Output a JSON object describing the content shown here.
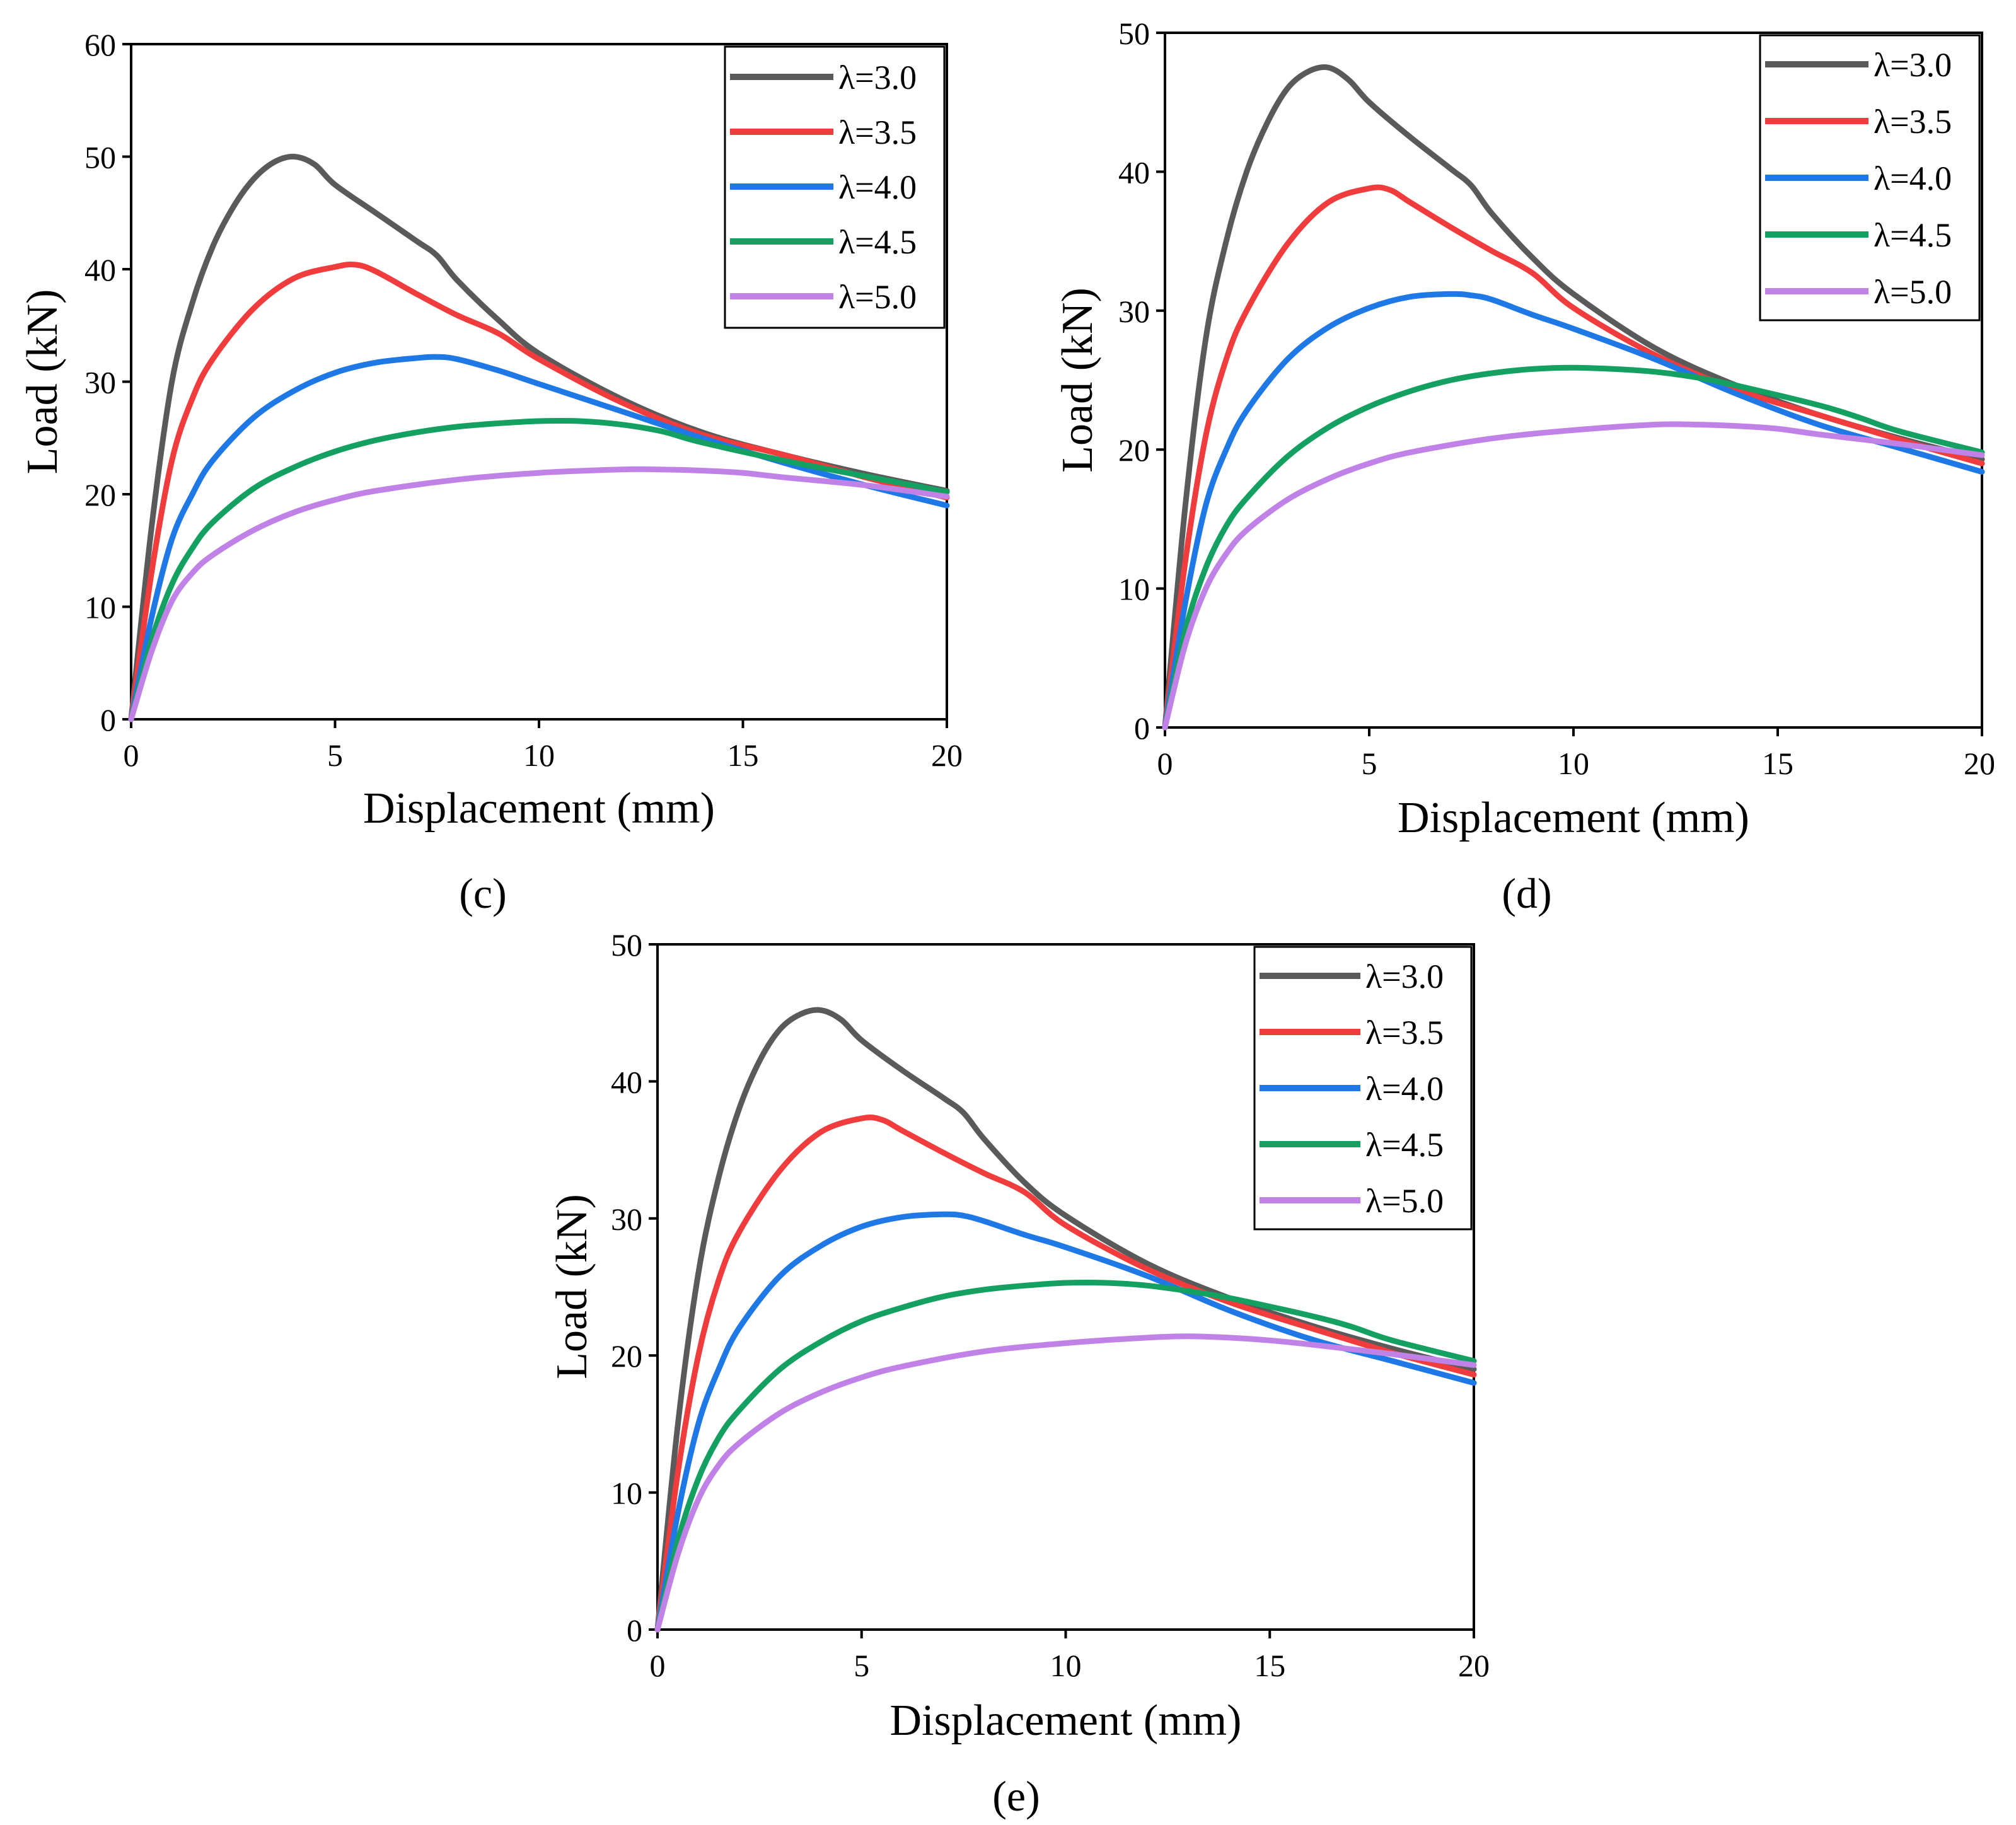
{
  "figure": {
    "series_names": [
      "λ=3.0",
      "λ=3.5",
      "λ=4.0",
      "λ=4.5",
      "λ=5.0"
    ],
    "series_colors": [
      "#5a5a5a",
      "#f03c3c",
      "#1e78e6",
      "#14a060",
      "#c082e6"
    ]
  },
  "chart_data": [
    {
      "panel": "c",
      "caption": "(c)",
      "type": "line",
      "xlabel": "Displacement (mm)",
      "ylabel": "Load (kN)",
      "xlim": [
        0,
        20
      ],
      "ylim": [
        0,
        60
      ],
      "xticks": [
        0,
        5,
        10,
        15,
        20
      ],
      "yticks": [
        0,
        10,
        20,
        30,
        40,
        50,
        60
      ],
      "legend_position": "top-right",
      "series": [
        {
          "name": "λ=3.0",
          "color": "#5a5a5a",
          "x": [
            0,
            0.5,
            1.0,
            1.5,
            2.0,
            2.5,
            3.0,
            3.5,
            4.0,
            4.5,
            5.0,
            6.0,
            7.0,
            7.5,
            8.0,
            9.0,
            10.0,
            12.0,
            14.0,
            16.0,
            18.0,
            20.0
          ],
          "y": [
            0,
            17,
            30,
            37,
            42,
            45.5,
            48,
            49.5,
            50.0,
            49.3,
            47.5,
            45,
            42.5,
            41.2,
            39,
            35.5,
            32.5,
            28.5,
            25.5,
            23.5,
            21.8,
            20.3
          ]
        },
        {
          "name": "λ=3.5",
          "color": "#f03c3c",
          "x": [
            0,
            0.5,
            1.0,
            1.5,
            2.0,
            3.0,
            4.0,
            5.0,
            5.5,
            6.0,
            7.0,
            8.0,
            9.0,
            10.0,
            12.0,
            14.0,
            16.0,
            18.0,
            20.0
          ],
          "y": [
            0,
            13,
            23,
            28.5,
            32,
            36.5,
            39.2,
            40.2,
            40.4,
            39.8,
            37.8,
            35.9,
            34.3,
            32,
            28.2,
            25.3,
            23.5,
            21.5,
            19.7
          ]
        },
        {
          "name": "λ=4.0",
          "color": "#1e78e6",
          "x": [
            0,
            0.5,
            1.0,
            1.5,
            2.0,
            3.0,
            4.0,
            5.0,
            6.0,
            7.0,
            7.5,
            8.0,
            9.0,
            10.0,
            12.0,
            14.0,
            16.0,
            18.0,
            20.0
          ],
          "y": [
            0,
            9,
            16,
            20,
            23,
            26.8,
            29.2,
            30.8,
            31.7,
            32.1,
            32.2,
            32.0,
            31.0,
            29.8,
            27.4,
            25,
            22.8,
            20.8,
            19.0
          ]
        },
        {
          "name": "λ=4.5",
          "color": "#14a060",
          "x": [
            0,
            0.5,
            1.0,
            1.5,
            2.0,
            3.0,
            4.0,
            5.0,
            6.0,
            7.0,
            8.0,
            9.0,
            10.0,
            11.0,
            12.0,
            13.0,
            14.0,
            16.0,
            18.0,
            20.0
          ],
          "y": [
            0,
            7,
            12,
            15.2,
            17.5,
            20.5,
            22.4,
            23.8,
            24.8,
            25.5,
            26.0,
            26.3,
            26.5,
            26.5,
            26.2,
            25.6,
            24.6,
            23.0,
            21.6,
            20.2
          ]
        },
        {
          "name": "λ=5.0",
          "color": "#c082e6",
          "x": [
            0,
            0.5,
            1.0,
            1.5,
            2.0,
            3.0,
            4.0,
            5.0,
            6.0,
            8.0,
            10.0,
            12.0,
            13.0,
            14.0,
            15.0,
            16.0,
            18.0,
            20.0
          ],
          "y": [
            0,
            6,
            10.5,
            13,
            14.6,
            16.8,
            18.4,
            19.5,
            20.3,
            21.3,
            21.9,
            22.2,
            22.2,
            22.1,
            21.9,
            21.5,
            20.8,
            19.8
          ]
        }
      ]
    },
    {
      "panel": "d",
      "caption": "(d)",
      "type": "line",
      "xlabel": "Displacement (mm)",
      "ylabel": "Load (kN)",
      "xlim": [
        0,
        20
      ],
      "ylim": [
        0,
        50
      ],
      "xticks": [
        0,
        5,
        10,
        15,
        20
      ],
      "yticks": [
        0,
        10,
        20,
        30,
        40,
        50
      ],
      "legend_position": "top-right",
      "series": [
        {
          "name": "λ=3.0",
          "color": "#5a5a5a",
          "x": [
            0,
            0.5,
            1.0,
            1.5,
            2.0,
            2.5,
            3.0,
            3.5,
            4.0,
            4.5,
            5.0,
            6.0,
            7.0,
            7.5,
            8.0,
            9.0,
            10.0,
            12.0,
            14.0,
            16.0,
            18.0,
            20.0
          ],
          "y": [
            0,
            16,
            28,
            35,
            40,
            43.5,
            46,
            47.2,
            47.5,
            46.6,
            45,
            42.5,
            40.2,
            39.0,
            37,
            33.8,
            31.2,
            27.3,
            24.6,
            22.5,
            20.8,
            19.3
          ]
        },
        {
          "name": "λ=3.5",
          "color": "#f03c3c",
          "x": [
            0,
            0.5,
            1.0,
            1.5,
            2.0,
            3.0,
            4.0,
            5.0,
            5.5,
            6.0,
            7.0,
            8.0,
            9.0,
            10.0,
            12.0,
            14.0,
            16.0,
            18.0,
            20.0
          ],
          "y": [
            0,
            12,
            21,
            26.5,
            30,
            34.8,
            37.8,
            38.8,
            38.7,
            37.8,
            36,
            34.3,
            32.7,
            30.2,
            26.8,
            24.3,
            22.5,
            20.7,
            19.0
          ]
        },
        {
          "name": "λ=4.0",
          "color": "#1e78e6",
          "x": [
            0,
            0.5,
            1.0,
            1.5,
            2.0,
            3.0,
            4.0,
            5.0,
            6.0,
            7.0,
            7.5,
            8.0,
            9.0,
            10.0,
            12.0,
            14.0,
            16.0,
            18.0,
            20.0
          ],
          "y": [
            0,
            9,
            16,
            20,
            22.8,
            26.5,
            28.8,
            30.2,
            31.0,
            31.2,
            31.1,
            30.8,
            29.7,
            28.7,
            26.5,
            24,
            21.8,
            20.1,
            18.4
          ]
        },
        {
          "name": "λ=4.5",
          "color": "#14a060",
          "x": [
            0,
            0.5,
            1.0,
            1.5,
            2.0,
            3.0,
            4.0,
            5.0,
            6.0,
            7.0,
            8.0,
            9.0,
            10.0,
            11.0,
            12.0,
            13.0,
            14.0,
            16.0,
            17.0,
            18.0,
            20.0
          ],
          "y": [
            0,
            7,
            11.5,
            14.5,
            16.5,
            19.5,
            21.6,
            23.1,
            24.2,
            25.0,
            25.5,
            25.8,
            25.9,
            25.8,
            25.6,
            25.2,
            24.6,
            23.2,
            22.3,
            21.3,
            19.8
          ]
        },
        {
          "name": "λ=5.0",
          "color": "#c082e6",
          "x": [
            0,
            0.5,
            1.0,
            1.5,
            2.0,
            3.0,
            4.0,
            5.0,
            6.0,
            8.0,
            10.0,
            12.0,
            13.0,
            14.0,
            15.0,
            16.0,
            18.0,
            20.0
          ],
          "y": [
            0,
            6,
            10,
            12.5,
            14.2,
            16.4,
            17.9,
            19.0,
            19.8,
            20.8,
            21.4,
            21.8,
            21.8,
            21.7,
            21.5,
            21.1,
            20.4,
            19.6
          ]
        }
      ]
    },
    {
      "panel": "e",
      "caption": "(e)",
      "type": "line",
      "xlabel": "Displacement (mm)",
      "ylabel": "Load (kN)",
      "xlim": [
        0,
        20
      ],
      "ylim": [
        0,
        50
      ],
      "xticks": [
        0,
        5,
        10,
        15,
        20
      ],
      "yticks": [
        0,
        10,
        20,
        30,
        40,
        50
      ],
      "legend_position": "top-right",
      "series": [
        {
          "name": "λ=3.0",
          "color": "#5a5a5a",
          "x": [
            0,
            0.5,
            1.0,
            1.5,
            2.0,
            2.5,
            3.0,
            3.5,
            4.0,
            4.5,
            5.0,
            6.0,
            7.0,
            7.5,
            8.0,
            9.0,
            10.0,
            12.0,
            14.0,
            16.0,
            18.0,
            20.0
          ],
          "y": [
            0,
            15,
            26,
            33,
            38,
            41.5,
            43.8,
            44.9,
            45.2,
            44.5,
            43.0,
            40.8,
            38.8,
            37.7,
            35.8,
            32.6,
            30.2,
            26.7,
            24.2,
            22.2,
            20.5,
            19.0
          ]
        },
        {
          "name": "λ=3.5",
          "color": "#f03c3c",
          "x": [
            0,
            0.5,
            1.0,
            1.5,
            2.0,
            3.0,
            4.0,
            5.0,
            5.5,
            6.0,
            7.0,
            8.0,
            9.0,
            10.0,
            12.0,
            14.0,
            16.0,
            18.0,
            20.0
          ],
          "y": [
            0,
            11.5,
            20,
            25.5,
            29,
            33.5,
            36.3,
            37.3,
            37.2,
            36.4,
            34.8,
            33.3,
            31.9,
            29.5,
            26.3,
            23.9,
            22.0,
            20.2,
            18.6
          ]
        },
        {
          "name": "λ=4.0",
          "color": "#1e78e6",
          "x": [
            0,
            0.5,
            1.0,
            1.5,
            2.0,
            3.0,
            4.0,
            5.0,
            6.0,
            7.0,
            7.5,
            8.0,
            9.0,
            10.0,
            12.0,
            14.0,
            16.0,
            18.0,
            20.0
          ],
          "y": [
            0,
            8.5,
            15,
            19,
            22,
            25.8,
            28.0,
            29.4,
            30.1,
            30.3,
            30.2,
            29.8,
            28.8,
            27.9,
            25.8,
            23.3,
            21.2,
            19.6,
            18.0
          ]
        },
        {
          "name": "λ=4.5",
          "color": "#14a060",
          "x": [
            0,
            0.5,
            1.0,
            1.5,
            2.0,
            3.0,
            4.0,
            5.0,
            6.0,
            7.0,
            8.0,
            9.0,
            10.0,
            11.0,
            12.0,
            13.0,
            14.0,
            16.0,
            17.0,
            18.0,
            20.0
          ],
          "y": [
            0,
            6.5,
            11,
            14,
            16,
            19,
            21,
            22.5,
            23.5,
            24.3,
            24.8,
            25.1,
            25.3,
            25.3,
            25.1,
            24.7,
            24.2,
            22.9,
            22.1,
            21.1,
            19.6
          ]
        },
        {
          "name": "λ=5.0",
          "color": "#c082e6",
          "x": [
            0,
            0.5,
            1.0,
            1.5,
            2.0,
            3.0,
            4.0,
            5.0,
            6.0,
            8.0,
            10.0,
            12.0,
            13.0,
            14.0,
            15.0,
            16.0,
            18.0,
            20.0
          ],
          "y": [
            0,
            5.5,
            9.5,
            12,
            13.6,
            15.8,
            17.3,
            18.4,
            19.2,
            20.3,
            20.9,
            21.3,
            21.4,
            21.3,
            21.1,
            20.8,
            20.1,
            19.3
          ]
        }
      ]
    }
  ]
}
